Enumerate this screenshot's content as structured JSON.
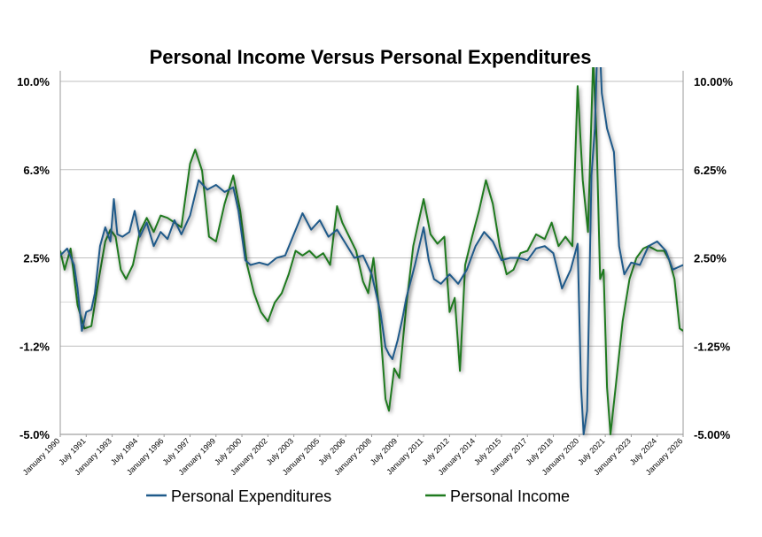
{
  "chart_data": {
    "type": "line",
    "title": "Personal Income Versus Personal Expenditures",
    "xlabel": "",
    "ylabel": "",
    "ylim": [
      -5.0,
      10.0
    ],
    "y_ticks_left": [
      "10.0%",
      "6.3%",
      "2.5%",
      "-1.2%",
      "-5.0%"
    ],
    "y_ticks_right": [
      "10.00%",
      "6.25%",
      "2.50%",
      "-1.25%",
      "-5.00%"
    ],
    "x_ticks": [
      "January 1990",
      "July 1991",
      "January 1993",
      "July 1994",
      "January 1996",
      "July 1997",
      "January 1999",
      "July 2000",
      "January 2002",
      "July 2003",
      "January 2005",
      "July 2006",
      "January 2008",
      "July 2009",
      "January 2011",
      "July 2012",
      "January 2014",
      "July 2015",
      "January 2017",
      "July 2018",
      "January 2020",
      "July 2021",
      "January 2023",
      "July 2024",
      "January 2026"
    ],
    "grid": true,
    "legend_position": "bottom",
    "series": [
      {
        "name": "Personal Expenditures",
        "color": "#1f5a8a",
        "points": [
          [
            1990.0,
            2.6
          ],
          [
            1990.4,
            2.9
          ],
          [
            1990.8,
            2.2
          ],
          [
            1991.0,
            1.2
          ],
          [
            1991.25,
            -0.6
          ],
          [
            1991.5,
            0.2
          ],
          [
            1991.8,
            0.3
          ],
          [
            1992.0,
            1.0
          ],
          [
            1992.3,
            3.0
          ],
          [
            1992.6,
            3.8
          ],
          [
            1992.9,
            3.2
          ],
          [
            1993.1,
            5.0
          ],
          [
            1993.3,
            3.5
          ],
          [
            1993.6,
            3.4
          ],
          [
            1994.0,
            3.6
          ],
          [
            1994.3,
            4.5
          ],
          [
            1994.6,
            3.4
          ],
          [
            1995.0,
            4.0
          ],
          [
            1995.4,
            3.0
          ],
          [
            1995.8,
            3.6
          ],
          [
            1996.2,
            3.3
          ],
          [
            1996.6,
            4.1
          ],
          [
            1997.0,
            3.5
          ],
          [
            1997.5,
            4.3
          ],
          [
            1998.0,
            5.8
          ],
          [
            1998.5,
            5.4
          ],
          [
            1999.0,
            5.6
          ],
          [
            1999.5,
            5.3
          ],
          [
            2000.0,
            5.5
          ],
          [
            2000.3,
            4.5
          ],
          [
            2000.7,
            2.4
          ],
          [
            2001.0,
            2.2
          ],
          [
            2001.5,
            2.3
          ],
          [
            2002.0,
            2.2
          ],
          [
            2002.5,
            2.5
          ],
          [
            2003.0,
            2.6
          ],
          [
            2003.5,
            3.5
          ],
          [
            2004.0,
            4.4
          ],
          [
            2004.5,
            3.7
          ],
          [
            2005.0,
            4.1
          ],
          [
            2005.5,
            3.4
          ],
          [
            2006.0,
            3.7
          ],
          [
            2006.5,
            3.1
          ],
          [
            2007.0,
            2.5
          ],
          [
            2007.5,
            2.6
          ],
          [
            2008.0,
            1.8
          ],
          [
            2008.5,
            0.2
          ],
          [
            2008.8,
            -1.3
          ],
          [
            2009.0,
            -1.6
          ],
          [
            2009.2,
            -1.8
          ],
          [
            2009.5,
            -1.0
          ],
          [
            2009.8,
            0.0
          ],
          [
            2010.0,
            0.8
          ],
          [
            2010.5,
            2.2
          ],
          [
            2011.0,
            3.8
          ],
          [
            2011.3,
            2.4
          ],
          [
            2011.6,
            1.6
          ],
          [
            2012.0,
            1.4
          ],
          [
            2012.5,
            1.8
          ],
          [
            2013.0,
            1.4
          ],
          [
            2013.5,
            2.0
          ],
          [
            2014.0,
            3.0
          ],
          [
            2014.5,
            3.6
          ],
          [
            2015.0,
            3.2
          ],
          [
            2015.5,
            2.4
          ],
          [
            2016.0,
            2.5
          ],
          [
            2016.5,
            2.5
          ],
          [
            2017.0,
            2.4
          ],
          [
            2017.5,
            2.9
          ],
          [
            2018.0,
            3.0
          ],
          [
            2018.5,
            2.7
          ],
          [
            2019.0,
            1.2
          ],
          [
            2019.5,
            2.0
          ],
          [
            2019.9,
            3.1
          ],
          [
            2020.1,
            -3.0
          ],
          [
            2020.25,
            -5.0
          ],
          [
            2020.45,
            -4.0
          ],
          [
            2020.7,
            6.0
          ],
          [
            2020.9,
            8.0
          ],
          [
            2021.1,
            13.0
          ],
          [
            2021.3,
            9.5
          ],
          [
            2021.6,
            8.0
          ],
          [
            2022.0,
            7.0
          ],
          [
            2022.3,
            3.0
          ],
          [
            2022.6,
            1.8
          ],
          [
            2023.0,
            2.3
          ],
          [
            2023.5,
            2.2
          ],
          [
            2024.0,
            3.0
          ],
          [
            2024.5,
            3.2
          ],
          [
            2025.0,
            2.8
          ],
          [
            2025.4,
            2.0
          ],
          [
            2025.7,
            2.1
          ],
          [
            2026.0,
            2.2
          ]
        ]
      },
      {
        "name": "Personal Income",
        "color": "#1f7a1f",
        "points": [
          [
            1990.0,
            2.8
          ],
          [
            1990.25,
            2.0
          ],
          [
            1990.6,
            2.9
          ],
          [
            1991.0,
            0.5
          ],
          [
            1991.4,
            -0.5
          ],
          [
            1991.8,
            -0.4
          ],
          [
            1992.2,
            1.5
          ],
          [
            1992.6,
            3.2
          ],
          [
            1992.9,
            3.7
          ],
          [
            1993.2,
            3.4
          ],
          [
            1993.5,
            2.0
          ],
          [
            1993.8,
            1.6
          ],
          [
            1994.2,
            2.2
          ],
          [
            1994.6,
            3.6
          ],
          [
            1995.0,
            4.2
          ],
          [
            1995.4,
            3.6
          ],
          [
            1995.8,
            4.3
          ],
          [
            1996.2,
            4.2
          ],
          [
            1996.6,
            4.0
          ],
          [
            1997.0,
            3.8
          ],
          [
            1997.5,
            6.5
          ],
          [
            1997.8,
            7.1
          ],
          [
            1998.2,
            6.2
          ],
          [
            1998.6,
            3.4
          ],
          [
            1999.0,
            3.2
          ],
          [
            1999.5,
            4.8
          ],
          [
            2000.0,
            6.0
          ],
          [
            2000.4,
            4.5
          ],
          [
            2000.8,
            2.2
          ],
          [
            2001.2,
            1.0
          ],
          [
            2001.6,
            0.2
          ],
          [
            2002.0,
            -0.2
          ],
          [
            2002.4,
            0.6
          ],
          [
            2002.8,
            1.0
          ],
          [
            2003.2,
            1.8
          ],
          [
            2003.6,
            2.8
          ],
          [
            2004.0,
            2.6
          ],
          [
            2004.4,
            2.8
          ],
          [
            2004.8,
            2.5
          ],
          [
            2005.2,
            2.7
          ],
          [
            2005.6,
            2.2
          ],
          [
            2006.0,
            4.7
          ],
          [
            2006.3,
            4.0
          ],
          [
            2006.7,
            3.4
          ],
          [
            2007.1,
            2.8
          ],
          [
            2007.5,
            1.5
          ],
          [
            2007.8,
            1.0
          ],
          [
            2008.1,
            2.5
          ],
          [
            2008.4,
            0.5
          ],
          [
            2008.8,
            -3.5
          ],
          [
            2009.0,
            -4.0
          ],
          [
            2009.3,
            -2.2
          ],
          [
            2009.6,
            -2.6
          ],
          [
            2010.0,
            0.5
          ],
          [
            2010.4,
            3.0
          ],
          [
            2010.7,
            4.0
          ],
          [
            2011.0,
            5.0
          ],
          [
            2011.4,
            3.5
          ],
          [
            2011.8,
            3.1
          ],
          [
            2012.2,
            3.4
          ],
          [
            2012.5,
            0.2
          ],
          [
            2012.8,
            0.8
          ],
          [
            2013.1,
            -2.3
          ],
          [
            2013.4,
            2.2
          ],
          [
            2013.8,
            3.4
          ],
          [
            2014.2,
            4.5
          ],
          [
            2014.6,
            5.8
          ],
          [
            2015.0,
            4.8
          ],
          [
            2015.4,
            3.0
          ],
          [
            2015.8,
            1.8
          ],
          [
            2016.2,
            2.0
          ],
          [
            2016.6,
            2.7
          ],
          [
            2017.0,
            2.8
          ],
          [
            2017.5,
            3.5
          ],
          [
            2018.0,
            3.3
          ],
          [
            2018.4,
            4.0
          ],
          [
            2018.8,
            3.0
          ],
          [
            2019.2,
            3.4
          ],
          [
            2019.6,
            3.0
          ],
          [
            2019.9,
            9.8
          ],
          [
            2020.2,
            5.8
          ],
          [
            2020.5,
            3.6
          ],
          [
            2020.8,
            11.0
          ],
          [
            2021.0,
            7.5
          ],
          [
            2021.2,
            1.6
          ],
          [
            2021.4,
            2.0
          ],
          [
            2021.6,
            -3.0
          ],
          [
            2021.8,
            -5.0
          ],
          [
            2022.1,
            -3.0
          ],
          [
            2022.5,
            -0.2
          ],
          [
            2022.9,
            1.6
          ],
          [
            2023.3,
            2.5
          ],
          [
            2023.7,
            2.9
          ],
          [
            2024.0,
            3.0
          ],
          [
            2024.5,
            2.8
          ],
          [
            2024.9,
            2.8
          ],
          [
            2025.2,
            2.4
          ],
          [
            2025.5,
            1.6
          ],
          [
            2025.8,
            -0.5
          ],
          [
            2026.0,
            -0.6
          ]
        ]
      }
    ]
  }
}
